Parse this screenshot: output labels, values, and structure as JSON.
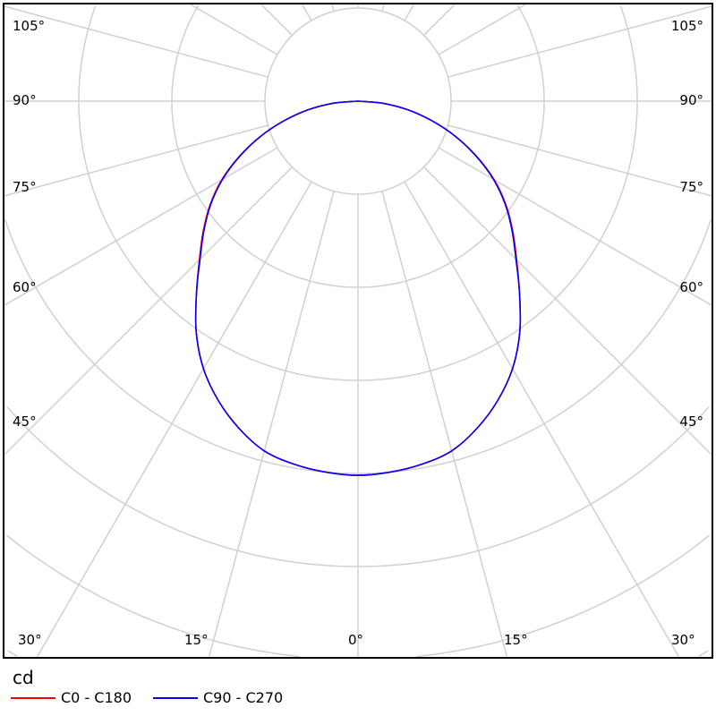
{
  "chart_data": {
    "type": "polar",
    "unit": "cd",
    "angle_labels_left": [
      "105°",
      "90°",
      "75°",
      "60°",
      "45°",
      "30°"
    ],
    "angle_labels_right": [
      "105°",
      "90°",
      "75°",
      "60°",
      "45°",
      "30°"
    ],
    "angle_labels_bottom": [
      "30°",
      "15°",
      "0°",
      "15°",
      "30°"
    ],
    "grid": true,
    "radial_step_deg": 15,
    "legend_placement": "bottom-left",
    "angles": [
      0,
      5,
      10,
      15,
      20,
      25,
      30,
      35,
      40,
      45,
      50,
      55,
      60,
      65,
      70,
      75,
      80,
      85,
      90
    ],
    "series": [
      {
        "name": "C0 - C180",
        "color": "#ff0000",
        "values": [
          4.02,
          4.0,
          3.96,
          3.89,
          3.74,
          3.55,
          3.32,
          3.03,
          2.7,
          2.41,
          2.17,
          1.94,
          1.69,
          1.41,
          1.12,
          0.83,
          0.55,
          0.27,
          0
        ]
      },
      {
        "name": "C90 - C270",
        "color": "#0000ff",
        "values": [
          4.02,
          4.0,
          3.96,
          3.89,
          3.74,
          3.55,
          3.32,
          3.03,
          2.7,
          2.4,
          2.16,
          1.93,
          1.68,
          1.4,
          1.12,
          0.83,
          0.55,
          0.27,
          0
        ]
      }
    ]
  }
}
